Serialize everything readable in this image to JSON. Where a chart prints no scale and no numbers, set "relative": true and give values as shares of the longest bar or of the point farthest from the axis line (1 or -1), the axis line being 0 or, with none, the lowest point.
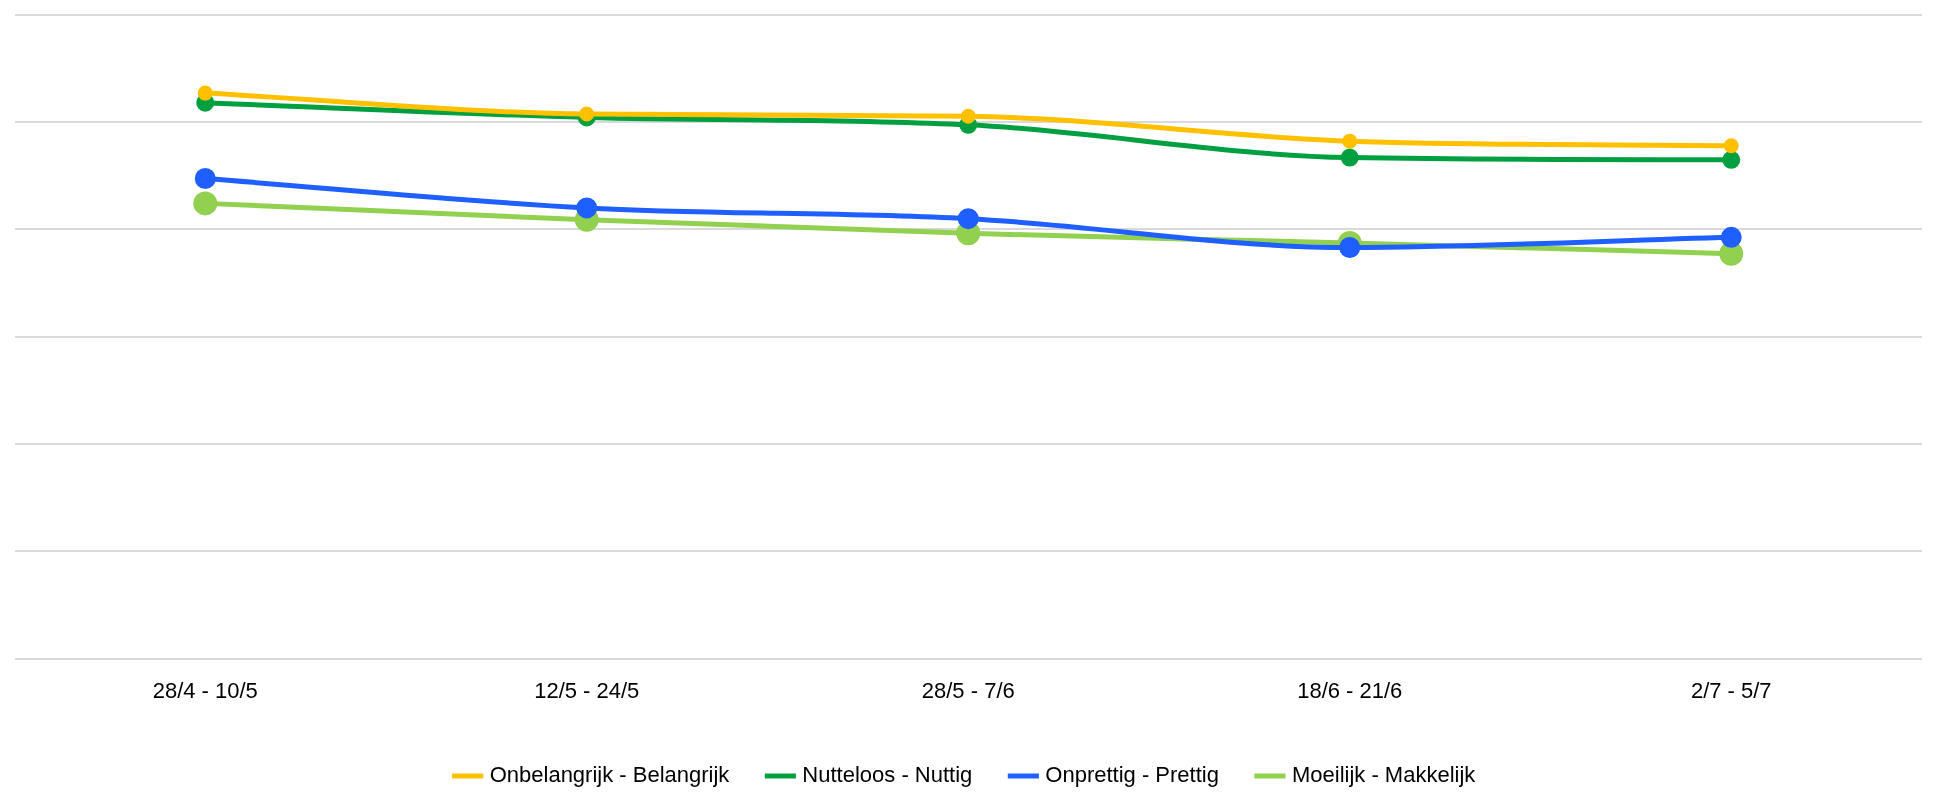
{
  "chart_data": {
    "type": "line",
    "relative": true,
    "categories": [
      "28/4 - 10/5",
      "12/5 - 24/5",
      "28/5 - 7/6",
      "18/6 - 21/6",
      "2/7 - 5/7"
    ],
    "series": [
      {
        "name": "Onbelangrijk - Belangrijk",
        "color": "#ffc000",
        "values": [
          1,
          0.963,
          0.959,
          0.915,
          0.907
        ]
      },
      {
        "name": "Nutteloos - Nuttig",
        "color": "#00a040",
        "values": [
          0.983,
          0.957,
          0.944,
          0.886,
          0.882
        ]
      },
      {
        "name": "Onprettig - Prettig",
        "color": "#1f5eff",
        "values": [
          0.849,
          0.797,
          0.778,
          0.727,
          0.745
        ]
      },
      {
        "name": "Moeilijk - Makkelijk",
        "color": "#92d050",
        "values": [
          0.805,
          0.776,
          0.752,
          0.735,
          0.716
        ]
      }
    ],
    "grid": "y",
    "legend": "bottom",
    "marker": "circle",
    "line_style": "solid"
  }
}
